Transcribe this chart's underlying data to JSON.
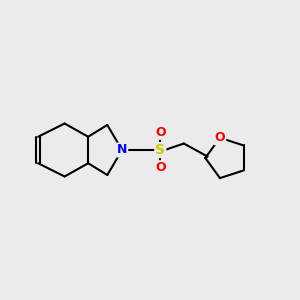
{
  "bg_color": "#ebebeb",
  "bond_color": "#000000",
  "N_color": "#0000ff",
  "S_color": "#cccc00",
  "O_color": "#ff0000",
  "line_width": 1.5,
  "font_size": 9,
  "xlim": [
    0,
    10
  ],
  "ylim": [
    0,
    10
  ]
}
